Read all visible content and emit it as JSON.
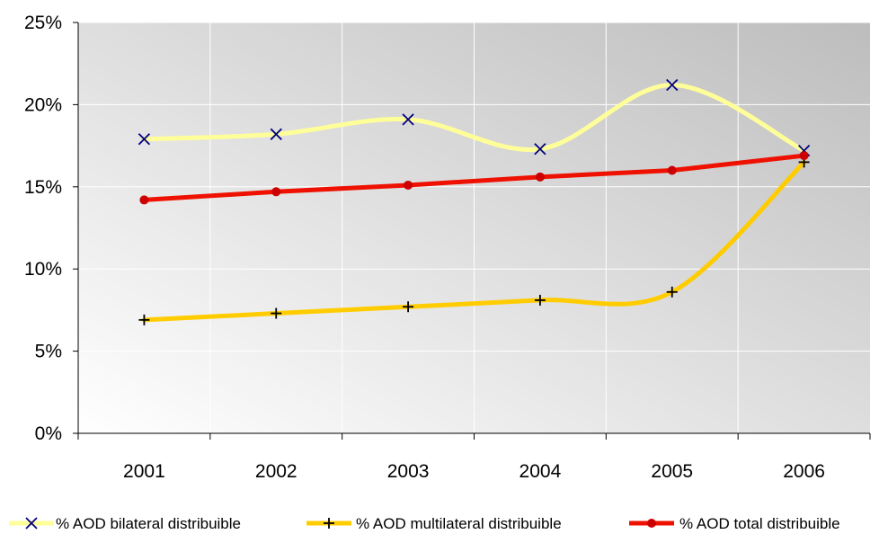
{
  "chart_data": {
    "type": "line",
    "categories": [
      "2001",
      "2002",
      "2003",
      "2004",
      "2005",
      "2006"
    ],
    "ylim": [
      0,
      25
    ],
    "y_ticks": [
      "0%",
      "5%",
      "10%",
      "15%",
      "20%",
      "25%"
    ],
    "y_tick_values": [
      0,
      5,
      10,
      15,
      20,
      25
    ],
    "grid": true,
    "legend_position": "bottom",
    "series": [
      {
        "name": "% AOD bilateral distribuible",
        "values": [
          17.9,
          18.2,
          19.1,
          17.3,
          21.2,
          17.2
        ],
        "color": "#ffff99",
        "marker": "x",
        "marker_color": "#000080",
        "smooth": true
      },
      {
        "name": "% AOD multilateral distribuible",
        "values": [
          6.9,
          7.3,
          7.7,
          8.1,
          8.6,
          16.5
        ],
        "color": "#ffcc00",
        "marker": "plus",
        "marker_color": "#000000",
        "smooth": true
      },
      {
        "name": "% AOD total distribuible",
        "values": [
          14.2,
          14.7,
          15.1,
          15.6,
          16.0,
          16.9
        ],
        "color": "#ee1100",
        "marker": "circle",
        "marker_color": "#cc0000",
        "smooth": false
      }
    ]
  }
}
